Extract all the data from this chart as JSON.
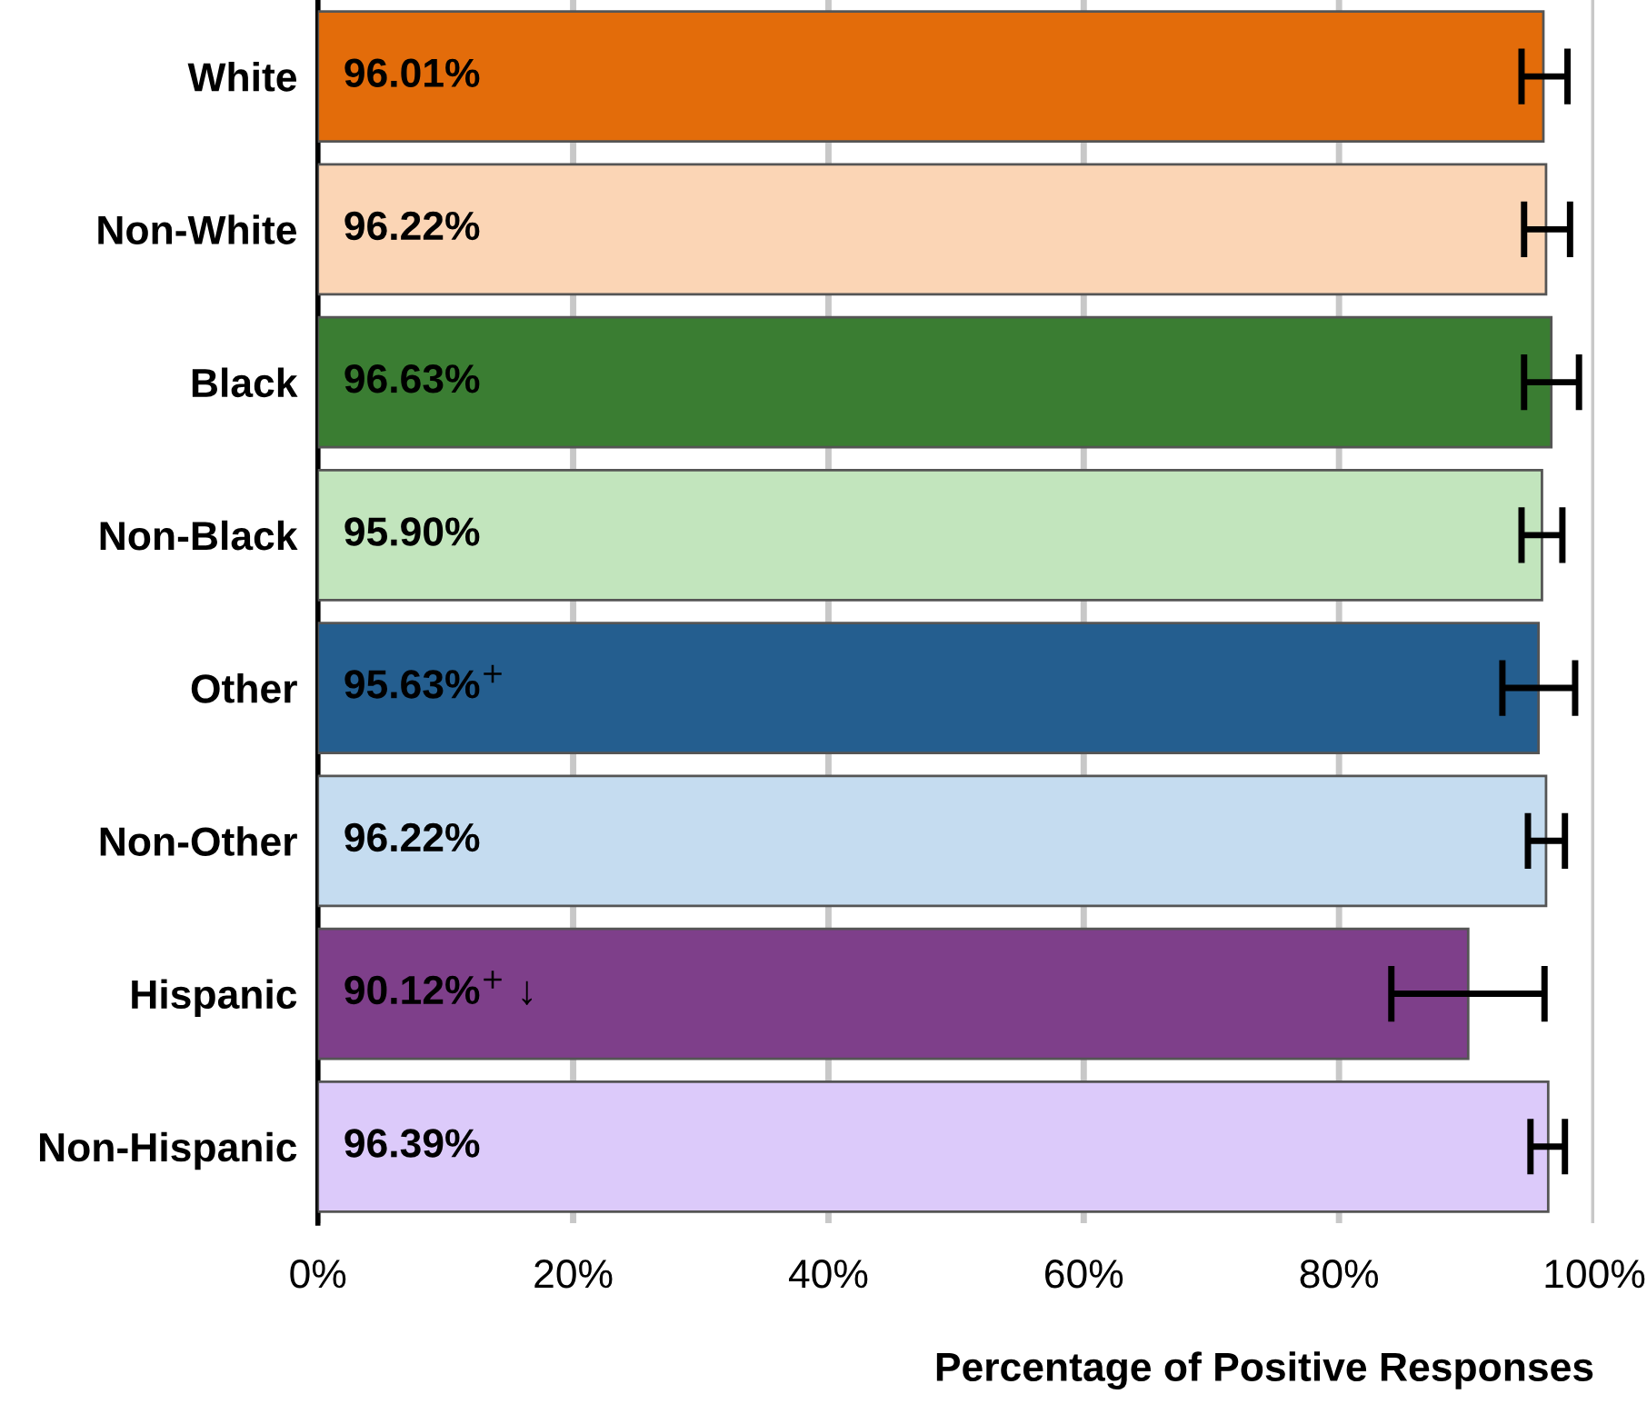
{
  "chart_data": {
    "type": "bar",
    "orientation": "horizontal",
    "xlabel": "Percentage of Positive Responses",
    "categories": [
      "White",
      "Non-White",
      "Black",
      "Non-Black",
      "Other",
      "Non-Other",
      "Hispanic",
      "Non-Hispanic"
    ],
    "values": [
      96.01,
      96.22,
      96.63,
      95.9,
      95.63,
      96.22,
      90.12,
      96.39
    ],
    "colors": [
      "#e36c0a",
      "#fbd5b5",
      "#3a7d32",
      "#c2e5bd",
      "#245e8f",
      "#c5dcf0",
      "#7e3f8a",
      "#dccafa"
    ],
    "errors": [
      [
        94.3,
        97.9
      ],
      [
        94.5,
        98.1
      ],
      [
        94.5,
        98.8
      ],
      [
        94.3,
        97.5
      ],
      [
        92.8,
        98.5
      ],
      [
        94.8,
        97.7
      ],
      [
        84.1,
        96.1
      ],
      [
        95.0,
        97.7
      ]
    ],
    "value_labels": [
      "96.01%",
      "96.22%",
      "96.63%",
      "95.90%",
      "95.63%$^{+}$",
      "96.22%",
      "90.12%$^{+}$ ↓",
      "96.39%"
    ],
    "xlim": [
      0,
      100
    ],
    "xticks": [
      {
        "value": 0,
        "label": "0%"
      },
      {
        "value": 20,
        "label": "20%"
      },
      {
        "value": 40,
        "label": "40%"
      },
      {
        "value": 60,
        "label": "60%"
      },
      {
        "value": 80,
        "label": "80%"
      },
      {
        "value": 100,
        "label": "100%"
      }
    ],
    "grid": "x",
    "legend": false
  }
}
